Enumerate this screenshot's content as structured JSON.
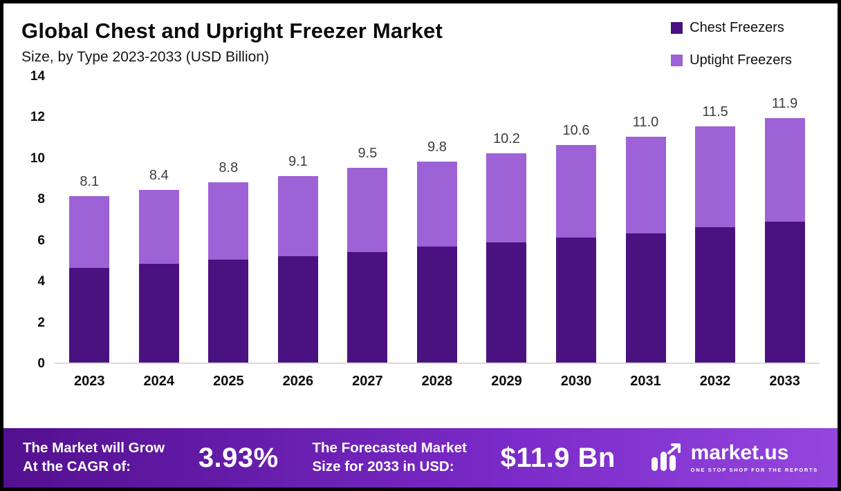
{
  "header": {
    "title": "Global Chest and Upright Freezer Market",
    "subtitle": "Size, by Type 2023-2033 (USD Billion)"
  },
  "legend": {
    "items": [
      {
        "label": "Chest Freezers",
        "color": "#4a1280"
      },
      {
        "label": "Uptight Freezers",
        "color": "#9d62d6"
      }
    ]
  },
  "chart_data": {
    "type": "bar",
    "stacked": true,
    "title": "Global Chest and Upright Freezer Market",
    "subtitle": "Size, by Type 2023-2033 (USD Billion)",
    "xlabel": "",
    "ylabel": "",
    "categories": [
      "2023",
      "2024",
      "2025",
      "2026",
      "2027",
      "2028",
      "2029",
      "2030",
      "2031",
      "2032",
      "2033"
    ],
    "series": [
      {
        "name": "Chest Freezers",
        "color": "#4a1280",
        "values": [
          4.6,
          4.8,
          5.0,
          5.2,
          5.4,
          5.65,
          5.85,
          6.1,
          6.3,
          6.6,
          6.85
        ]
      },
      {
        "name": "Uptight Freezers",
        "color": "#9d62d6",
        "values": [
          3.5,
          3.6,
          3.8,
          3.9,
          4.1,
          4.15,
          4.35,
          4.5,
          4.7,
          4.9,
          5.05
        ]
      }
    ],
    "totals": [
      8.1,
      8.4,
      8.8,
      9.1,
      9.5,
      9.8,
      10.2,
      10.6,
      11.0,
      11.5,
      11.9
    ],
    "total_labels": [
      "8.1",
      "8.4",
      "8.8",
      "9.1",
      "9.5",
      "9.8",
      "10.2",
      "10.6",
      "11.0",
      "11.5",
      "11.9"
    ],
    "ylim": [
      0,
      14
    ],
    "yticks": [
      0,
      2,
      4,
      6,
      8,
      10,
      12,
      14
    ],
    "grid": false,
    "legend_position": "top-right"
  },
  "footer": {
    "cagr_label_line1": "The Market will Grow",
    "cagr_label_line2": "At the CAGR of:",
    "cagr_value": "3.93%",
    "forecast_label_line1": "The Forecasted Market",
    "forecast_label_line2": "Size for 2033 in USD:",
    "forecast_value": "$11.9 Bn",
    "brand": "market.us",
    "brand_tagline": "ONE STOP SHOP FOR THE REPORTS"
  }
}
